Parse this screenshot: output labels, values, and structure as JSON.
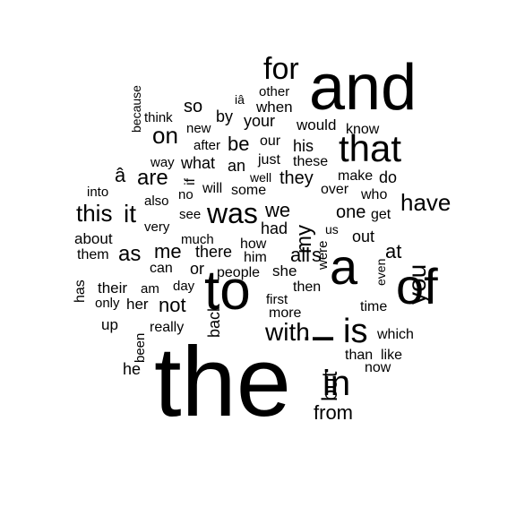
{
  "words": [
    {
      "text": "the",
      "vertical": false
    },
    {
      "text": "and",
      "vertical": false
    },
    {
      "text": "to",
      "vertical": false
    },
    {
      "text": "of",
      "vertical": false
    },
    {
      "text": "a",
      "vertical": false
    },
    {
      "text": "i",
      "vertical": true
    },
    {
      "text": "that",
      "vertical": false
    },
    {
      "text": "in",
      "vertical": false
    },
    {
      "text": "is",
      "vertical": false
    },
    {
      "text": "was",
      "vertical": false
    },
    {
      "text": "for",
      "vertical": false
    },
    {
      "text": "you",
      "vertical": true
    },
    {
      "text": "with",
      "vertical": false
    },
    {
      "text": "it",
      "vertical": false
    },
    {
      "text": "this",
      "vertical": false
    },
    {
      "text": "have",
      "vertical": false
    },
    {
      "text": "but",
      "vertical": true
    },
    {
      "text": "on",
      "vertical": false
    },
    {
      "text": "my",
      "vertical": true
    },
    {
      "text": "are",
      "vertical": false
    },
    {
      "text": "as",
      "vertical": false
    },
    {
      "text": "me",
      "vertical": false
    },
    {
      "text": "not",
      "vertical": false
    },
    {
      "text": "be",
      "vertical": false
    },
    {
      "text": "from",
      "vertical": false
    },
    {
      "text": "at",
      "vertical": false
    },
    {
      "text": "all",
      "vertical": false
    },
    {
      "text": "s",
      "vertical": false
    },
    {
      "text": "we",
      "vertical": false
    },
    {
      "text": "they",
      "vertical": false
    },
    {
      "text": "one",
      "vertical": false
    },
    {
      "text": "so",
      "vertical": false
    },
    {
      "text": "your",
      "vertical": false
    },
    {
      "text": "by",
      "vertical": false
    },
    {
      "text": "had",
      "vertical": false
    },
    {
      "text": "what",
      "vertical": false
    },
    {
      "text": "his",
      "vertical": false
    },
    {
      "text": "do",
      "vertical": false
    },
    {
      "text": "an",
      "vertical": false
    },
    {
      "text": "out",
      "vertical": false
    },
    {
      "text": "or",
      "vertical": false
    },
    {
      "text": "there",
      "vertical": false
    },
    {
      "text": "â",
      "vertical": false
    },
    {
      "text": "would",
      "vertical": false
    },
    {
      "text": "when",
      "vertical": false
    },
    {
      "text": "about",
      "vertical": false
    },
    {
      "text": "more",
      "vertical": false
    },
    {
      "text": "time",
      "vertical": false
    },
    {
      "text": "which",
      "vertical": false
    },
    {
      "text": "like",
      "vertical": false
    },
    {
      "text": "he",
      "vertical": false
    },
    {
      "text": "up",
      "vertical": false
    },
    {
      "text": "her",
      "vertical": false
    },
    {
      "text": "back",
      "vertical": true
    },
    {
      "text": "can",
      "vertical": false
    },
    {
      "text": "get",
      "vertical": false
    },
    {
      "text": "who",
      "vertical": false
    },
    {
      "text": "them",
      "vertical": false
    },
    {
      "text": "just",
      "vertical": false
    },
    {
      "text": "some",
      "vertical": false
    },
    {
      "text": "will",
      "vertical": false
    },
    {
      "text": "our",
      "vertical": false
    },
    {
      "text": "she",
      "vertical": false
    },
    {
      "text": "people",
      "vertical": false
    },
    {
      "text": "their",
      "vertical": false
    },
    {
      "text": "now",
      "vertical": false
    },
    {
      "text": "than",
      "vertical": false
    },
    {
      "text": "then",
      "vertical": false
    },
    {
      "text": "know",
      "vertical": false
    },
    {
      "text": "these",
      "vertical": false
    },
    {
      "text": "make",
      "vertical": false
    },
    {
      "text": "over",
      "vertical": false
    },
    {
      "text": "how",
      "vertical": false
    },
    {
      "text": "him",
      "vertical": false
    },
    {
      "text": "first",
      "vertical": false
    },
    {
      "text": "well",
      "vertical": false
    },
    {
      "text": "other",
      "vertical": false
    },
    {
      "text": "after",
      "vertical": false
    },
    {
      "text": "new",
      "vertical": false
    },
    {
      "text": "think",
      "vertical": false
    },
    {
      "text": "way",
      "vertical": false
    },
    {
      "text": "into",
      "vertical": false
    },
    {
      "text": "also",
      "vertical": false
    },
    {
      "text": "no",
      "vertical": false
    },
    {
      "text": "see",
      "vertical": false
    },
    {
      "text": "very",
      "vertical": false
    },
    {
      "text": "much",
      "vertical": false
    },
    {
      "text": "only",
      "vertical": false
    },
    {
      "text": "am",
      "vertical": false
    },
    {
      "text": "day",
      "vertical": false
    },
    {
      "text": "really",
      "vertical": false
    },
    {
      "text": "us",
      "vertical": false
    },
    {
      "text": "iâ",
      "vertical": false
    },
    {
      "text": "because",
      "vertical": true
    },
    {
      "text": "has",
      "vertical": true
    },
    {
      "text": "been",
      "vertical": true
    },
    {
      "text": "were",
      "vertical": true
    },
    {
      "text": "even",
      "vertical": true
    },
    {
      "text": "if",
      "vertical": true
    }
  ]
}
